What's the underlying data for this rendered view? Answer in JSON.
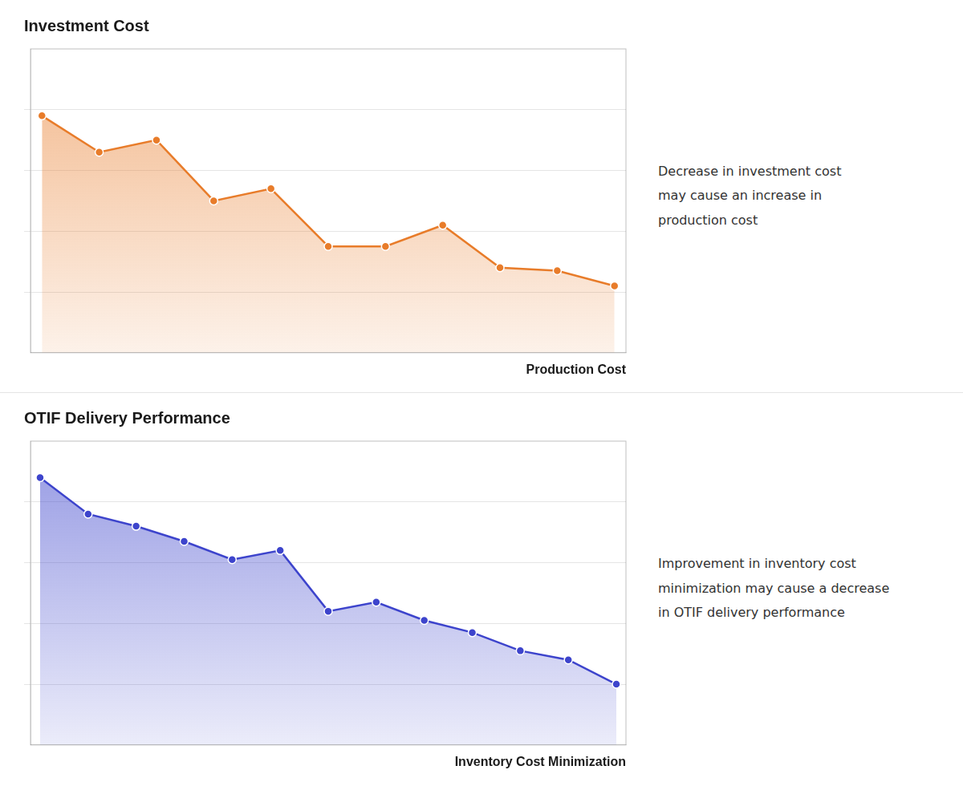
{
  "chart_data": [
    {
      "type": "line",
      "title": "Investment Cost",
      "xlabel": "Production Cost",
      "annotation": "Decrease in investment cost\nmay cause an increase in\nproduction cost",
      "x": [
        0,
        1,
        2,
        3,
        4,
        5,
        6,
        7,
        8,
        9,
        10
      ],
      "values": [
        0.78,
        0.66,
        0.7,
        0.5,
        0.54,
        0.35,
        0.35,
        0.42,
        0.28,
        0.27,
        0.22
      ],
      "color": "#e87c2a",
      "marker": "circle",
      "xlim": [
        -0.2,
        10.2
      ],
      "ylim": [
        0.0,
        1.0
      ],
      "yticks": [
        0.2,
        0.4,
        0.6,
        0.8
      ],
      "grid": true,
      "tick_labels": false
    },
    {
      "type": "line",
      "title": "OTIF Delivery Performance",
      "xlabel": "Inventory Cost Minimization",
      "annotation": "Improvement in inventory cost\nminimization may cause a decrease\nin OTIF delivery performance",
      "x": [
        0,
        1,
        2,
        3,
        4,
        5,
        6,
        7,
        8,
        9,
        10,
        11,
        12
      ],
      "values": [
        0.88,
        0.76,
        0.72,
        0.67,
        0.61,
        0.64,
        0.44,
        0.47,
        0.41,
        0.37,
        0.31,
        0.28,
        0.2
      ],
      "color": "#3d44cc",
      "marker": "circle",
      "xlim": [
        -0.2,
        12.2
      ],
      "ylim": [
        0.0,
        1.0
      ],
      "yticks": [
        0.2,
        0.4,
        0.6,
        0.8
      ],
      "grid": true,
      "tick_labels": false
    }
  ]
}
